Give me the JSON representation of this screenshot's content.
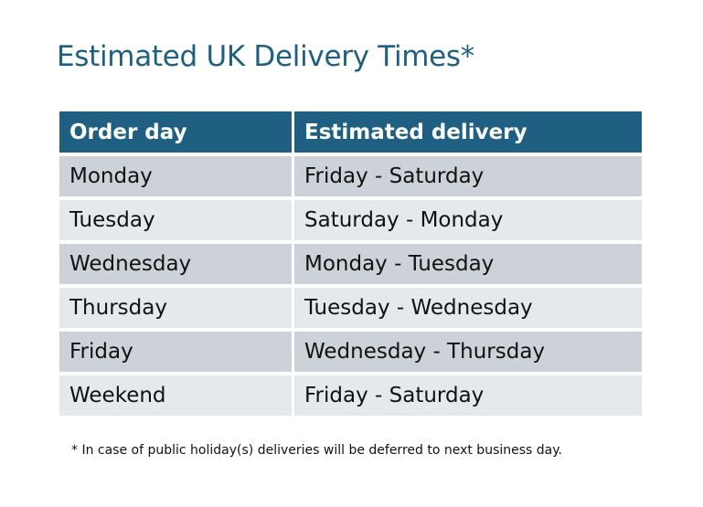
{
  "title": "Estimated UK Delivery Times*",
  "table": {
    "headers": [
      "Order day",
      "Estimated delivery"
    ],
    "rows": [
      [
        "Monday",
        "Friday - Saturday"
      ],
      [
        "Tuesday",
        "Saturday - Monday"
      ],
      [
        "Wednesday",
        "Monday - Tuesday"
      ],
      [
        "Thursday",
        "Tuesday - Wednesday"
      ],
      [
        "Friday",
        "Wednesday - Thursday"
      ],
      [
        "Weekend",
        "Friday - Saturday"
      ]
    ]
  },
  "footnote": "* In case of public holiday(s) deliveries will be deferred to next business day.",
  "colors": {
    "header": "#1f6082",
    "title": "#1f5f80",
    "row_dark": "#cdd1d8",
    "row_light": "#e6e9ec"
  }
}
